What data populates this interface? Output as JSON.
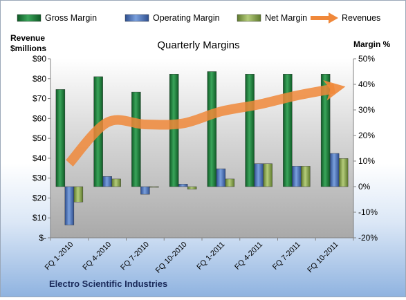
{
  "chart_data": {
    "type": "bar",
    "title": "Quarterly Margins",
    "company": "Electro Scientific Industries",
    "categories": [
      "FQ 1-2010",
      "FQ 4-2010",
      "FQ 7-2010",
      "FQ 10-2010",
      "FQ 1-2011",
      "FQ 4-2011",
      "FQ 7-2011",
      "FQ 10-2011"
    ],
    "left_axis": {
      "label_line1": "Revenue",
      "label_line2": "$millions",
      "range": [
        0,
        90
      ],
      "tick_values": [
        0,
        10,
        20,
        30,
        40,
        50,
        60,
        70,
        80,
        90
      ],
      "tick_labels": [
        "$-",
        "$10",
        "$20",
        "$30",
        "$40",
        "$50",
        "$60",
        "$70",
        "$80",
        "$90"
      ]
    },
    "right_axis": {
      "label": "Margin %",
      "range": [
        -20,
        50
      ],
      "tick_values": [
        -20,
        -10,
        0,
        10,
        20,
        30,
        40,
        50
      ],
      "tick_labels": [
        "-20%",
        "-10%",
        "0%",
        "10%",
        "20%",
        "30%",
        "40%",
        "50%"
      ]
    },
    "series": [
      {
        "name": "Gross Margin",
        "axis": "right",
        "color": "#1e7b3c",
        "values": [
          38,
          43,
          37,
          44,
          45,
          44,
          44,
          44
        ]
      },
      {
        "name": "Operating Margin",
        "axis": "right",
        "color": "#4f74b9",
        "values": [
          -15,
          4,
          -3,
          1,
          7,
          9,
          8,
          13
        ]
      },
      {
        "name": "Net Margin",
        "axis": "right",
        "color": "#8daa4f",
        "values": [
          -6,
          3,
          0,
          -1,
          3,
          9,
          8,
          11
        ]
      },
      {
        "name": "Revenues",
        "axis": "left",
        "type": "line",
        "color": "#f0883a",
        "values": [
          37.5,
          58,
          57,
          57.5,
          63.5,
          67,
          71.5,
          75
        ]
      }
    ],
    "legend_position": "top",
    "grid": false
  }
}
